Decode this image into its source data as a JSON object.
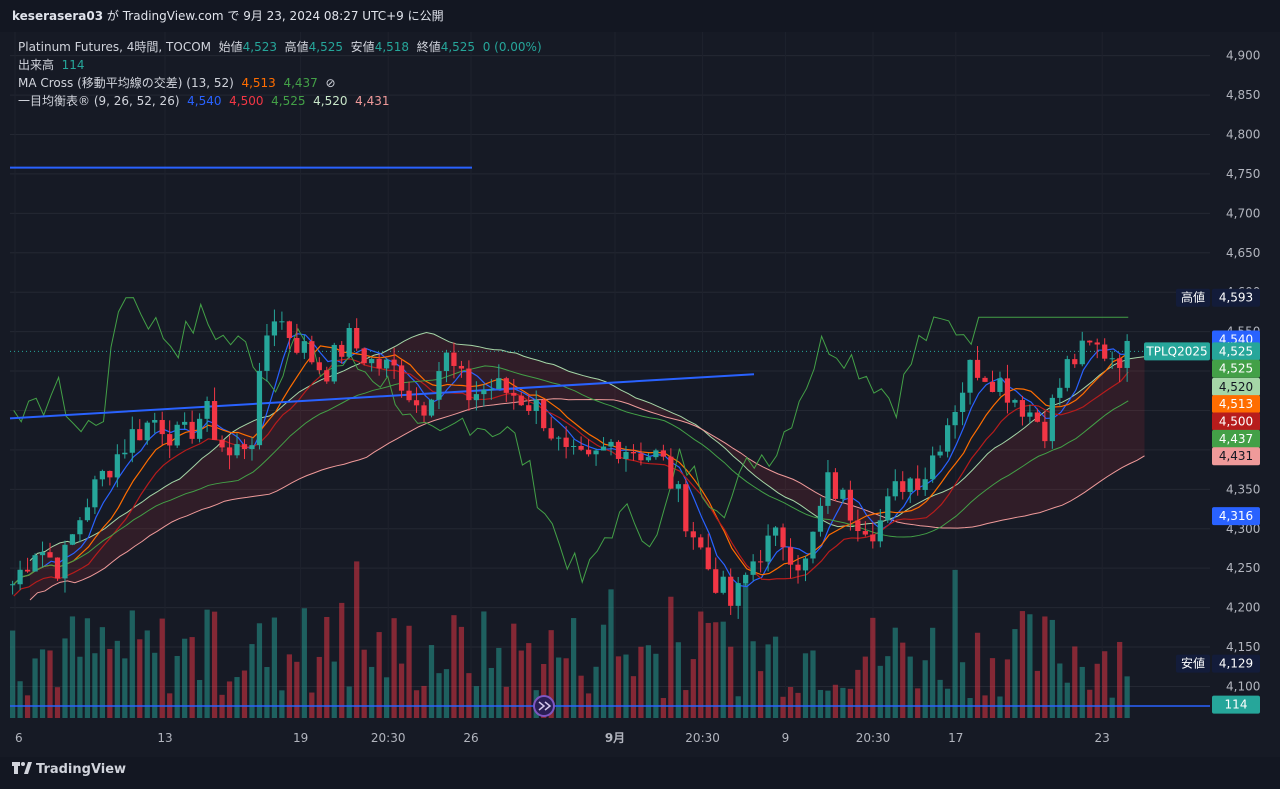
{
  "header": {
    "user": "keserasera03",
    "text": "が TradingView.com で 9月 23, 2024 08:27 UTC+9 に公開"
  },
  "legend": {
    "symbol_line": "Platinum Futures, 4時間, TOCOM",
    "open_label": "始値",
    "open": "4,523",
    "high_label": "高値",
    "high": "4,525",
    "low_label": "安値",
    "low": "4,518",
    "close_label": "終値",
    "close": "4,525",
    "change": "0 (0.00%)",
    "volume_label": "出来高",
    "volume": "114",
    "ma_label": "MA Cross (移動平均線の交差) (13, 52)",
    "ma_fast": "4,513",
    "ma_slow": "4,437",
    "ichimoku_label": "一目均衡表® (9, 26, 52, 26)",
    "ichi_1": "4,540",
    "ichi_2": "4,500",
    "ichi_3": "4,525",
    "ichi_4": "4,520",
    "ichi_5": "4,431"
  },
  "colors": {
    "up": "#26a69a",
    "down": "#f23645",
    "ma_fast": "#ff6d00",
    "ma_slow": "#43a047",
    "tenkan": "#2962ff",
    "kijun": "#b71c1c",
    "chikou": "#43a047",
    "span_a": "#a5d6a7",
    "span_b": "#ef9a9a",
    "hline": "#2962ff"
  },
  "price_axis": {
    "ticks": [
      "4,900",
      "4,850",
      "4,800",
      "4,750",
      "4,700",
      "4,650",
      "4,600",
      "4,550",
      "4,500",
      "4,450",
      "4,400",
      "4,350",
      "4,300",
      "4,250",
      "4,200",
      "4,150",
      "4,100"
    ],
    "tick_values": [
      4900,
      4850,
      4800,
      4750,
      4700,
      4650,
      4600,
      4550,
      4500,
      4450,
      4400,
      4350,
      4300,
      4250,
      4200,
      4150,
      4100
    ],
    "labels": [
      {
        "prefix": "高値",
        "text": "4,593",
        "value": 4593,
        "color": "#131c3a",
        "fg": "#ffffff"
      },
      {
        "text": "4,540",
        "value": 4540,
        "color": "#2962ff",
        "fg": "#ffffff"
      },
      {
        "prefix": "TPLQ2025",
        "text": "4,525",
        "value": 4525,
        "color": "#26a69a",
        "fg": "#ffffff"
      },
      {
        "text": "4,525",
        "value": 4503,
        "color": "#43a047",
        "fg": "#ffffff"
      },
      {
        "text": "4,520",
        "value": 4480,
        "color": "#a5d6a7",
        "fg": "#131722"
      },
      {
        "text": "4,513",
        "value": 4458,
        "color": "#ff6d00",
        "fg": "#ffffff"
      },
      {
        "text": "4,500",
        "value": 4436,
        "color": "#b71c1c",
        "fg": "#ffffff"
      },
      {
        "text": "4,437",
        "value": 4414,
        "color": "#43a047",
        "fg": "#ffffff"
      },
      {
        "text": "4,431",
        "value": 4392,
        "color": "#ef9a9a",
        "fg": "#131722"
      },
      {
        "text": "4,316",
        "value": 4316,
        "color": "#2962ff",
        "fg": "#ffffff"
      },
      {
        "prefix": "安値",
        "text": "4,129",
        "value": 4129,
        "color": "#131c3a",
        "fg": "#ffffff"
      },
      {
        "text": "114",
        "value": 4077,
        "color": "#26a69a",
        "fg": "#ffffff"
      }
    ]
  },
  "time_axis": {
    "labels": [
      "6",
      "13",
      "19",
      "20:30",
      "26",
      "9月",
      "20:30",
      "9",
      "20:30",
      "17",
      "23"
    ],
    "positions": [
      0,
      0.125,
      0.238,
      0.311,
      0.38,
      0.5,
      0.573,
      0.642,
      0.715,
      0.784,
      0.906
    ]
  },
  "chart_data": {
    "type": "candlestick",
    "symbol": "Platinum Futures, 4時間, TOCOM",
    "ylim": [
      4060,
      4930
    ],
    "hline_value": 4758,
    "trendline": [
      [
        0,
        4440
      ],
      [
        0.62,
        4496
      ]
    ],
    "close_path": [
      [
        0,
        4230
      ],
      [
        0.02,
        4280
      ],
      [
        0.04,
        4250
      ],
      [
        0.06,
        4330
      ],
      [
        0.08,
        4380
      ],
      [
        0.1,
        4420
      ],
      [
        0.12,
        4440
      ],
      [
        0.14,
        4410
      ],
      [
        0.16,
        4450
      ],
      [
        0.18,
        4390
      ],
      [
        0.2,
        4420
      ],
      [
        0.215,
        4580
      ],
      [
        0.235,
        4540
      ],
      [
        0.26,
        4500
      ],
      [
        0.28,
        4540
      ],
      [
        0.3,
        4510
      ],
      [
        0.32,
        4500
      ],
      [
        0.34,
        4450
      ],
      [
        0.36,
        4520
      ],
      [
        0.38,
        4470
      ],
      [
        0.4,
        4480
      ],
      [
        0.42,
        4470
      ],
      [
        0.44,
        4450
      ],
      [
        0.46,
        4390
      ],
      [
        0.48,
        4380
      ],
      [
        0.5,
        4410
      ],
      [
        0.52,
        4400
      ],
      [
        0.54,
        4390
      ],
      [
        0.56,
        4320
      ],
      [
        0.58,
        4250
      ],
      [
        0.6,
        4200
      ],
      [
        0.62,
        4270
      ],
      [
        0.64,
        4290
      ],
      [
        0.66,
        4250
      ],
      [
        0.68,
        4360
      ],
      [
        0.7,
        4320
      ],
      [
        0.72,
        4300
      ],
      [
        0.74,
        4360
      ],
      [
        0.76,
        4370
      ],
      [
        0.78,
        4440
      ],
      [
        0.8,
        4510
      ],
      [
        0.82,
        4490
      ],
      [
        0.84,
        4460
      ],
      [
        0.86,
        4430
      ],
      [
        0.88,
        4510
      ],
      [
        0.9,
        4530
      ],
      [
        0.92,
        4520
      ],
      [
        0.935,
        4525
      ]
    ],
    "volume_max": 4
  }
}
